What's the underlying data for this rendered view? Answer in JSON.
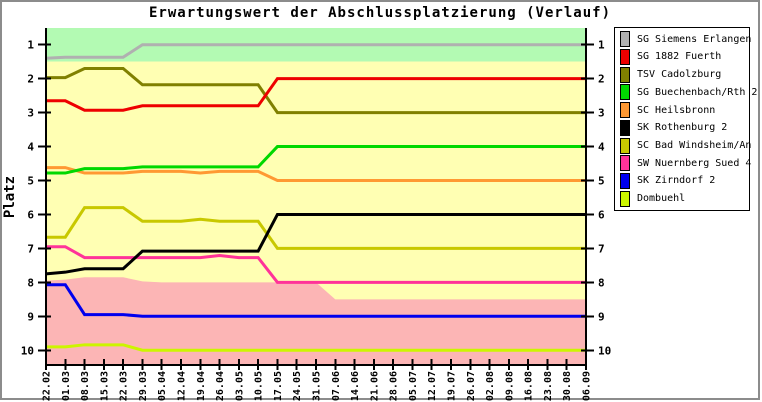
{
  "window": {
    "background": "#FFFFFF",
    "border_color": "#8C8C8C"
  },
  "chart_data": {
    "type": "line",
    "title": "Erwartungswert der Abschlussplatzierung (Verlauf)",
    "ylabel": "Platz",
    "y_axis_inverted": true,
    "y_range": [
      0.5,
      10.5
    ],
    "y_ticks": [
      1,
      2,
      3,
      4,
      5,
      6,
      7,
      8,
      9,
      10
    ],
    "y_tick_sides": "both",
    "grid": false,
    "legend_position": "right-outside",
    "x_labels": [
      "22.02",
      "01.03",
      "08.03",
      "15.03",
      "22.03",
      "29.03",
      "05.04",
      "12.04",
      "19.04",
      "26.04",
      "03.05",
      "10.05",
      "17.05",
      "24.05",
      "31.05",
      "07.06",
      "14.06",
      "21.06",
      "28.06",
      "05.07",
      "12.07",
      "19.07",
      "26.07",
      "02.08",
      "09.08",
      "16.08",
      "23.08",
      "30.08",
      "06.09"
    ],
    "bands": {
      "promotion": {
        "color": "#B3FAB3",
        "from_rank": 0.5,
        "to_rank": 1.5
      },
      "midfield": {
        "color": "#FFFFB3",
        "from_rank": 1.5,
        "to_rank": "relegation_boundary"
      },
      "relegation": {
        "color": "#FCB5B5",
        "to_rank": 10.5,
        "boundary_ranks": [
          7.95,
          7.92,
          7.85,
          7.85,
          7.85,
          7.97,
          8,
          8,
          8,
          8,
          8,
          8,
          8,
          8,
          8,
          8.5,
          8.5,
          8.5,
          8.5,
          8.5,
          8.5,
          8.5,
          8.5,
          8.5,
          8.5,
          8.5,
          8.5,
          8.5,
          8.5
        ]
      }
    },
    "series": [
      {
        "name": "SG Siemens Erlangen",
        "color": "#B0B0B0",
        "values": [
          1.4,
          1.37,
          1.37,
          1.37,
          1.37,
          1,
          1,
          1,
          1,
          1,
          1,
          1,
          1,
          1,
          1,
          1,
          1,
          1,
          1,
          1,
          1,
          1,
          1,
          1,
          1,
          1,
          1,
          1,
          1
        ]
      },
      {
        "name": "SG 1882 Fuerth",
        "color": "#EE0000",
        "values": [
          2.65,
          2.65,
          2.93,
          2.93,
          2.93,
          2.8,
          2.8,
          2.8,
          2.8,
          2.8,
          2.8,
          2.8,
          2,
          2,
          2,
          2,
          2,
          2,
          2,
          2,
          2,
          2,
          2,
          2,
          2,
          2,
          2,
          2,
          2
        ]
      },
      {
        "name": "TSV Cadolzburg",
        "color": "#808000",
        "values": [
          1.97,
          1.97,
          1.7,
          1.7,
          1.7,
          2.18,
          2.18,
          2.18,
          2.18,
          2.18,
          2.18,
          2.18,
          3,
          3,
          3,
          3,
          3,
          3,
          3,
          3,
          3,
          3,
          3,
          3,
          3,
          3,
          3,
          3,
          3
        ]
      },
      {
        "name": "SG Buechenbach/Rth 2",
        "color": "#00D800",
        "values": [
          4.78,
          4.78,
          4.65,
          4.65,
          4.65,
          4.6,
          4.6,
          4.6,
          4.6,
          4.6,
          4.6,
          4.6,
          4,
          4,
          4,
          4,
          4,
          4,
          4,
          4,
          4,
          4,
          4,
          4,
          4,
          4,
          4,
          4,
          4
        ]
      },
      {
        "name": "SC Heilsbronn",
        "color": "#FF9933",
        "values": [
          4.62,
          4.62,
          4.78,
          4.78,
          4.78,
          4.73,
          4.73,
          4.73,
          4.78,
          4.73,
          4.73,
          4.73,
          5,
          5,
          5,
          5,
          5,
          5,
          5,
          5,
          5,
          5,
          5,
          5,
          5,
          5,
          5,
          5,
          5
        ]
      },
      {
        "name": "SK Rothenburg 2",
        "color": "#000000",
        "values": [
          7.75,
          7.7,
          7.6,
          7.6,
          7.6,
          7.08,
          7.08,
          7.08,
          7.08,
          7.08,
          7.08,
          7.08,
          6,
          6,
          6,
          6,
          6,
          6,
          6,
          6,
          6,
          6,
          6,
          6,
          6,
          6,
          6,
          6,
          6
        ]
      },
      {
        "name": "SC Bad Windsheim/An",
        "color": "#C8C800",
        "values": [
          6.67,
          6.67,
          5.8,
          5.8,
          5.8,
          6.2,
          6.2,
          6.2,
          6.14,
          6.2,
          6.2,
          6.2,
          7,
          7,
          7,
          7,
          7,
          7,
          7,
          7,
          7,
          7,
          7,
          7,
          7,
          7,
          7,
          7,
          7
        ]
      },
      {
        "name": "SW Nuernberg Sued 4",
        "color": "#FF3399",
        "values": [
          6.95,
          6.95,
          7.27,
          7.27,
          7.27,
          7.27,
          7.27,
          7.27,
          7.27,
          7.21,
          7.27,
          7.27,
          8,
          8,
          8,
          8,
          8,
          8,
          8,
          8,
          8,
          8,
          8,
          8,
          8,
          8,
          8,
          8,
          8
        ]
      },
      {
        "name": "SK Zirndorf 2",
        "color": "#0000EE",
        "values": [
          8.07,
          8.07,
          8.95,
          8.95,
          8.95,
          9,
          9,
          9,
          9,
          9,
          9,
          9,
          9,
          9,
          9,
          9,
          9,
          9,
          9,
          9,
          9,
          9,
          9,
          9,
          9,
          9,
          9,
          9,
          9
        ]
      },
      {
        "name": "Dombuehl",
        "color": "#CCF500",
        "values": [
          9.9,
          9.9,
          9.84,
          9.84,
          9.84,
          10,
          10,
          10,
          10,
          10,
          10,
          10,
          10,
          10,
          10,
          10,
          10,
          10,
          10,
          10,
          10,
          10,
          10,
          10,
          10,
          10,
          10,
          10,
          10
        ]
      }
    ]
  }
}
